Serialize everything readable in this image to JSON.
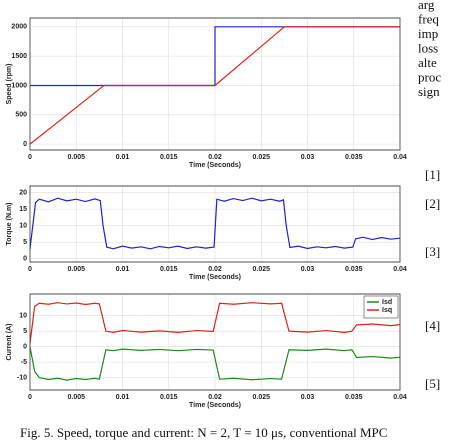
{
  "chart_data": [
    {
      "type": "line",
      "xlabel": "Time (Seconds)",
      "ylabel": "Speed (rpm)",
      "xlim": [
        0,
        0.04
      ],
      "xticks": [
        0,
        0.005,
        0.01,
        0.015,
        0.02,
        0.025,
        0.03,
        0.035,
        0.04
      ],
      "ylim": [
        -100,
        2150
      ],
      "yticks": [
        0,
        500,
        1000,
        1500,
        2000
      ],
      "grid": true,
      "series": [
        {
          "color": "#1f1fd6",
          "x": [
            0,
            0.02,
            0.02,
            0.04
          ],
          "values": [
            1000,
            1000,
            2000,
            2000
          ]
        },
        {
          "color": "#e0201c",
          "x": [
            0,
            0.008,
            0.02,
            0.0275,
            0.04
          ],
          "values": [
            0,
            1000,
            1000,
            2000,
            2000
          ]
        }
      ]
    },
    {
      "type": "line",
      "xlabel": "Time (Seconds)",
      "ylabel": "Torque (N.m)",
      "xlim": [
        0,
        0.04
      ],
      "xticks": [
        0,
        0.005,
        0.01,
        0.015,
        0.02,
        0.025,
        0.03,
        0.035,
        0.04
      ],
      "ylim": [
        -1,
        22
      ],
      "yticks": [
        0,
        5,
        10,
        15,
        20
      ],
      "grid": true,
      "series": [
        {
          "color": "#1f1fd6",
          "x": [
            0,
            0.0006,
            0.001,
            0.002,
            0.003,
            0.004,
            0.005,
            0.006,
            0.007,
            0.0076,
            0.0079,
            0.0083,
            0.009,
            0.01,
            0.011,
            0.012,
            0.013,
            0.014,
            0.015,
            0.016,
            0.017,
            0.018,
            0.019,
            0.0199,
            0.0202,
            0.021,
            0.022,
            0.023,
            0.024,
            0.025,
            0.026,
            0.027,
            0.0274,
            0.0277,
            0.0281,
            0.029,
            0.03,
            0.031,
            0.032,
            0.033,
            0.034,
            0.0349,
            0.0352,
            0.036,
            0.037,
            0.038,
            0.039,
            0.04
          ],
          "values": [
            3,
            17,
            18,
            17.2,
            18.3,
            17.5,
            18,
            17.3,
            18.1,
            17.6,
            10,
            3.5,
            3,
            3.8,
            3.2,
            3.6,
            3,
            3.7,
            3.3,
            3.8,
            3.1,
            3.6,
            3.2,
            3.5,
            18,
            17.4,
            18.2,
            17.6,
            18.3,
            17.5,
            18,
            17.4,
            17.8,
            10,
            3.4,
            3.8,
            3.1,
            3.6,
            3.3,
            3.7,
            3.2,
            3.5,
            6,
            6.5,
            5.8,
            6.4,
            5.9,
            6.2
          ]
        }
      ]
    },
    {
      "type": "line",
      "xlabel": "Time (Seconds)",
      "ylabel": "Current (A)",
      "xlim": [
        0,
        0.04
      ],
      "xticks": [
        0,
        0.005,
        0.01,
        0.015,
        0.02,
        0.025,
        0.03,
        0.035,
        0.04
      ],
      "ylim": [
        -14,
        17
      ],
      "yticks": [
        -10,
        -5,
        0,
        5,
        10
      ],
      "grid": true,
      "legend": "upper right",
      "series": [
        {
          "name": "Isd",
          "color": "#1a8a1a",
          "x": [
            0,
            0.0005,
            0.001,
            0.002,
            0.003,
            0.004,
            0.005,
            0.006,
            0.007,
            0.0075,
            0.0082,
            0.009,
            0.01,
            0.012,
            0.014,
            0.016,
            0.018,
            0.0198,
            0.0205,
            0.022,
            0.024,
            0.026,
            0.0272,
            0.028,
            0.03,
            0.032,
            0.034,
            0.0348,
            0.0353,
            0.037,
            0.039,
            0.04
          ],
          "values": [
            0,
            -8,
            -10,
            -10.6,
            -10.2,
            -10.8,
            -10.3,
            -10.6,
            -10.2,
            -10.5,
            -1,
            -1.3,
            -0.8,
            -1.2,
            -0.9,
            -1.3,
            -0.9,
            -1.1,
            -10.5,
            -10.2,
            -10.7,
            -10.3,
            -10.5,
            -1,
            -1.2,
            -0.8,
            -1.3,
            -1,
            -3.5,
            -3.2,
            -3.7,
            -3.4
          ]
        },
        {
          "name": "Isq",
          "color": "#e0201c",
          "x": [
            0,
            0.0005,
            0.001,
            0.002,
            0.003,
            0.004,
            0.005,
            0.006,
            0.007,
            0.0075,
            0.0082,
            0.009,
            0.01,
            0.012,
            0.014,
            0.016,
            0.018,
            0.0198,
            0.0205,
            0.022,
            0.024,
            0.026,
            0.0272,
            0.028,
            0.03,
            0.032,
            0.034,
            0.0348,
            0.0353,
            0.037,
            0.039,
            0.04
          ],
          "values": [
            1,
            13,
            14,
            13.7,
            14.2,
            13.8,
            14.1,
            13.6,
            14,
            13.8,
            5,
            4.6,
            5.2,
            4.7,
            5.1,
            4.6,
            5.2,
            4.9,
            14,
            13.7,
            14.2,
            13.8,
            14,
            5,
            4.7,
            5.2,
            4.6,
            5,
            7,
            7.3,
            6.8,
            7.1
          ]
        }
      ]
    }
  ],
  "right_text": {
    "lines": [
      "arg",
      "freq",
      "imp",
      "loss",
      "alte",
      "proc",
      "sign"
    ],
    "references": [
      "[1]",
      "[2]",
      "[3]",
      "[4]",
      "[5]"
    ]
  },
  "caption": "Fig. 5. Speed, torque and current: N = 2, T = 10 μs, conventional MPC"
}
